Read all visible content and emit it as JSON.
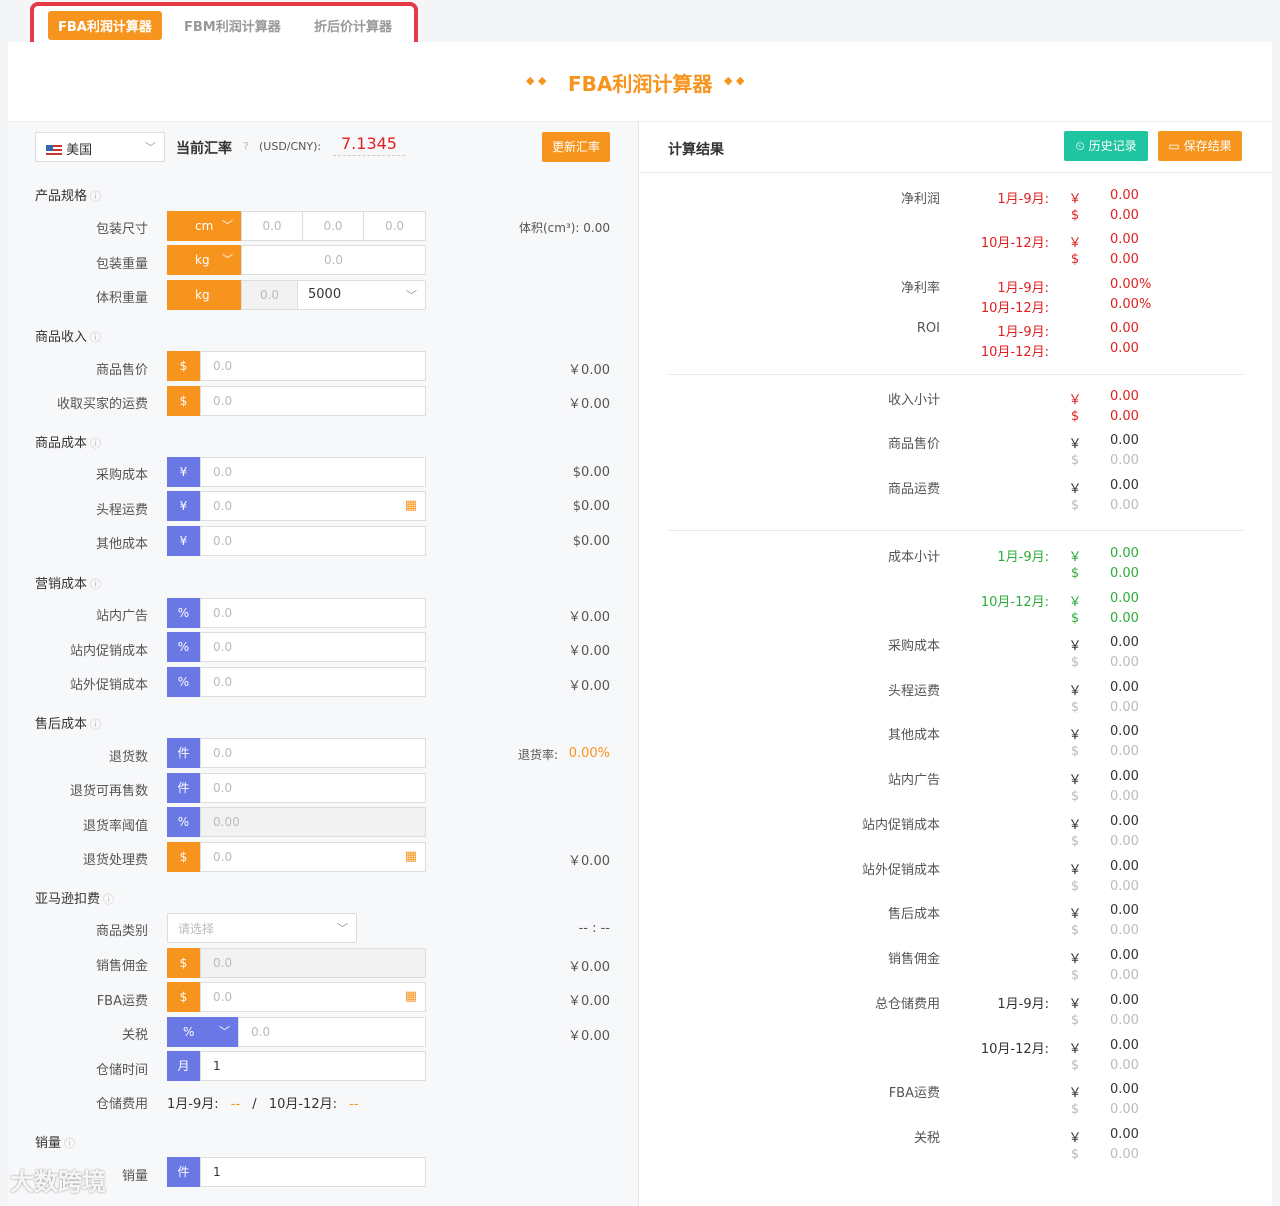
{
  "tabs": [
    "FBA利润计算器",
    "FBM利润计算器",
    "折后价计算器"
  ],
  "page_title": "FBA利润计算器",
  "left": {
    "country": "美国",
    "rate_label": "当前汇率",
    "rate_unit": "(USD/CNY):",
    "rate_value": "7.1345",
    "update_btn": "更新汇率",
    "sections": {
      "spec": "产品规格",
      "income": "商品收入",
      "cost": "商品成本",
      "marketing": "营销成本",
      "aftersale": "售后成本",
      "amazon": "亚马逊扣费",
      "sales": "销量"
    },
    "spec": {
      "pack_size": "包装尺寸",
      "size_unit": "cm",
      "size_vals": [
        "0.0",
        "0.0",
        "0.0"
      ],
      "volume_label": "体积(cm³): 0.00",
      "pack_weight": "包装重量",
      "weight_unit": "kg",
      "weight_val": "0.0",
      "vol_weight": "体积重量",
      "vw_unit": "kg",
      "vw_val": "0.0",
      "divisor": "5000"
    },
    "income": {
      "price": "商品售价",
      "shipping": "收取买家的运费",
      "placeholder": "0.0",
      "result": "￥0.00"
    },
    "cost": {
      "purchase": "采购成本",
      "freight": "头程运费",
      "other": "其他成本",
      "placeholder": "0.0",
      "result": "$0.00"
    },
    "marketing": {
      "ad": "站内广告",
      "promo": "站内促销成本",
      "offsite": "站外促销成本",
      "placeholder": "0.0",
      "result": "￥0.00"
    },
    "aftersale": {
      "returns": "退货数",
      "resell": "退货可再售数",
      "threshold": "退货率阈值",
      "fee": "退货处理费",
      "unit_piece": "件",
      "placeholder": "0.0",
      "threshold_val": "0.00",
      "rate_label": "退货率:",
      "rate_val": "0.00%",
      "result": "￥0.00"
    },
    "amazon": {
      "category": "商品类别",
      "category_ph": "请选择",
      "category_result": "-- : --",
      "commission": "销售佣金",
      "fba": "FBA运费",
      "tariff": "关税",
      "storage_time": "仓储时间",
      "storage_unit": "月",
      "storage_val": "1",
      "storage_fee": "仓储费用",
      "fee_text_a": "1月-9月:",
      "fee_val_a": "--",
      "fee_sep": "/",
      "fee_text_b": "10月-12月:",
      "fee_val_b": "--",
      "placeholder": "0.0",
      "result": "￥0.00"
    },
    "sales": {
      "label": "销量",
      "unit": "件",
      "val": "1"
    }
  },
  "right": {
    "header": "计算结果",
    "history_btn": "历史记录",
    "save_btn": "保存结果",
    "net_profit": "净利润",
    "net_margin": "净利率",
    "roi": "ROI",
    "p1": "1月-9月:",
    "p2": "10月-12月:",
    "zero": "0.00",
    "zero_pct": "0.00%",
    "income_sub": "收入小计",
    "price": "商品售价",
    "shipping": "商品运费",
    "cost_sub": "成本小计",
    "cost_items": [
      "采购成本",
      "头程运费",
      "其他成本",
      "站内广告",
      "站内促销成本",
      "站外促销成本",
      "售后成本",
      "销售佣金"
    ],
    "storage_total": "总仓储费用",
    "fba": "FBA运费",
    "tariff": "关税",
    "yen": "￥",
    "usd": "$"
  },
  "watermark": "大数跨境"
}
